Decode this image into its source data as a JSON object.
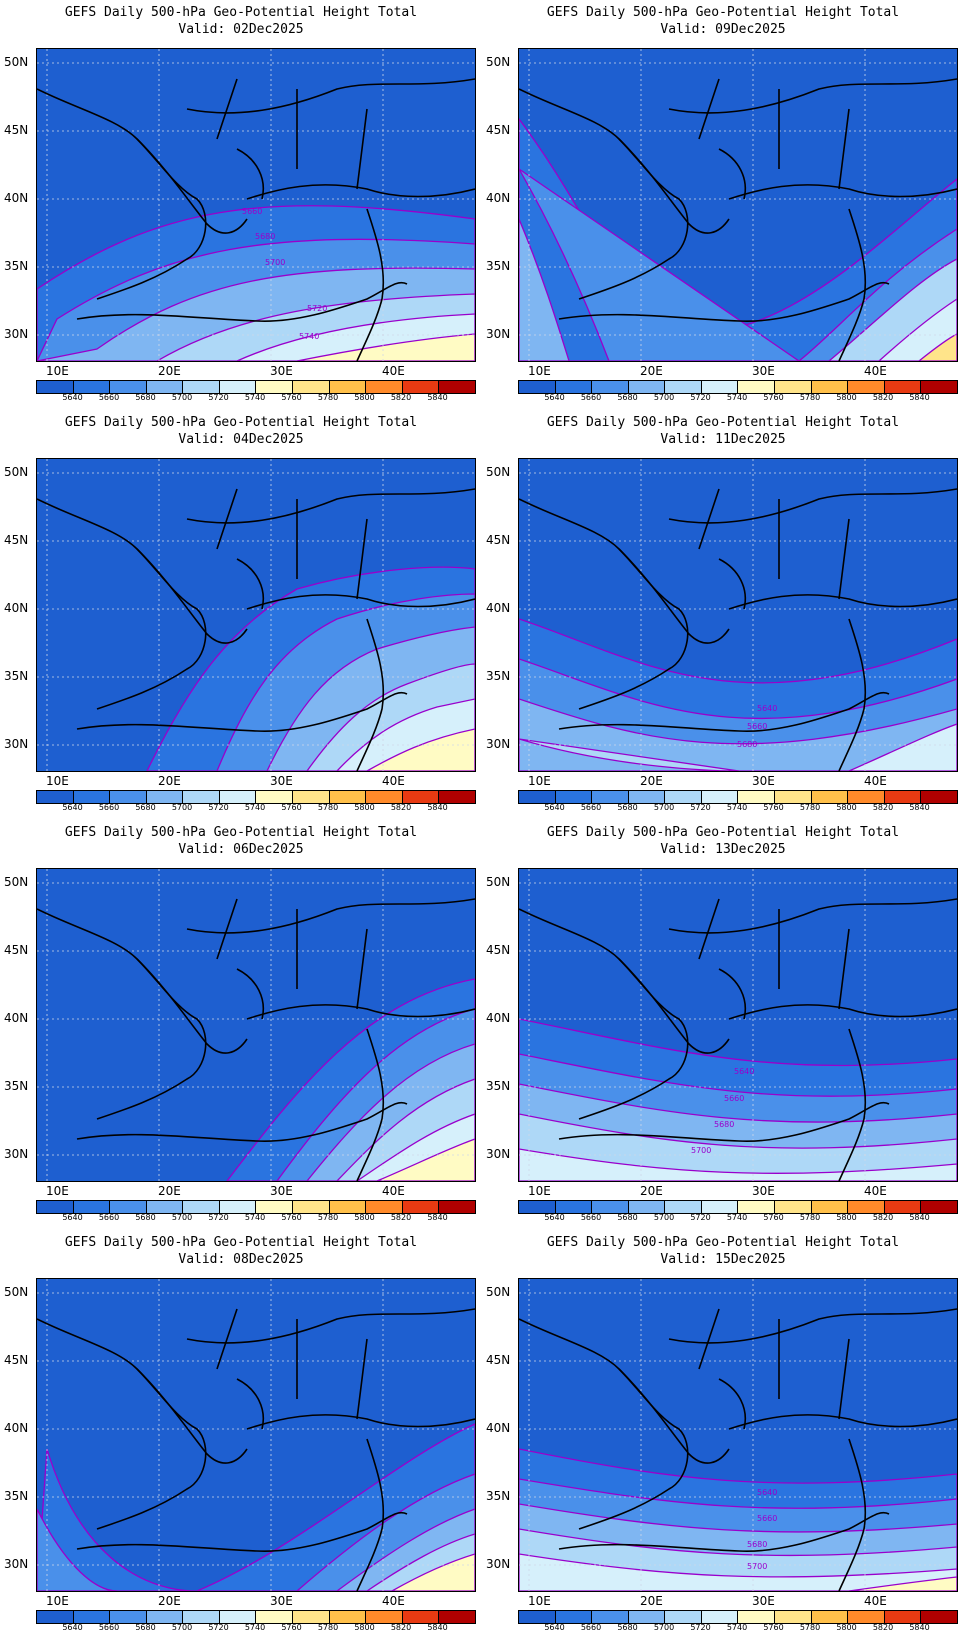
{
  "panels": [
    {
      "title": "GEFS Daily 500-hPa Geo-Potential Height Total",
      "valid": "Valid: 02Dec2025",
      "contour_labels": [
        "5660",
        "5680",
        "5700",
        "5720",
        "5740"
      ]
    },
    {
      "title": "GEFS Daily 500-hPa Geo-Potential Height Total",
      "valid": "Valid: 09Dec2025",
      "contour_labels": []
    },
    {
      "title": "GEFS Daily 500-hPa Geo-Potential Height Total",
      "valid": "Valid: 04Dec2025",
      "contour_labels": []
    },
    {
      "title": "GEFS Daily 500-hPa Geo-Potential Height Total",
      "valid": "Valid: 11Dec2025",
      "contour_labels": [
        "5640",
        "5660",
        "5680"
      ]
    },
    {
      "title": "GEFS Daily 500-hPa Geo-Potential Height Total",
      "valid": "Valid: 06Dec2025",
      "contour_labels": []
    },
    {
      "title": "GEFS Daily 500-hPa Geo-Potential Height Total",
      "valid": "Valid: 13Dec2025",
      "contour_labels": [
        "5640",
        "5660",
        "5680",
        "5700"
      ]
    },
    {
      "title": "GEFS Daily 500-hPa Geo-Potential Height Total",
      "valid": "Valid: 08Dec2025",
      "contour_labels": []
    },
    {
      "title": "GEFS Daily 500-hPa Geo-Potential Height Total",
      "valid": "Valid: 15Dec2025",
      "contour_labels": [
        "5640",
        "5660",
        "5680",
        "5700"
      ]
    }
  ],
  "lat_labels": [
    "50N",
    "45N",
    "40N",
    "35N",
    "30N"
  ],
  "lon_labels": [
    "10E",
    "20E",
    "30E",
    "40E"
  ],
  "colorbar": {
    "labels": [
      "5640",
      "5660",
      "5680",
      "5700",
      "5720",
      "5740",
      "5760",
      "5780",
      "5800",
      "5820",
      "5840"
    ],
    "colors": [
      "#1e5fd0",
      "#2a74e0",
      "#4a90ea",
      "#7fb6f2",
      "#aed8f7",
      "#d6f0fb",
      "#fffbc4",
      "#ffe48a",
      "#ffc04a",
      "#ff8a2a",
      "#e83a12",
      "#b00000"
    ]
  },
  "colors": {
    "contour": "#9900cc",
    "background_fill": "#1e5fd0"
  }
}
